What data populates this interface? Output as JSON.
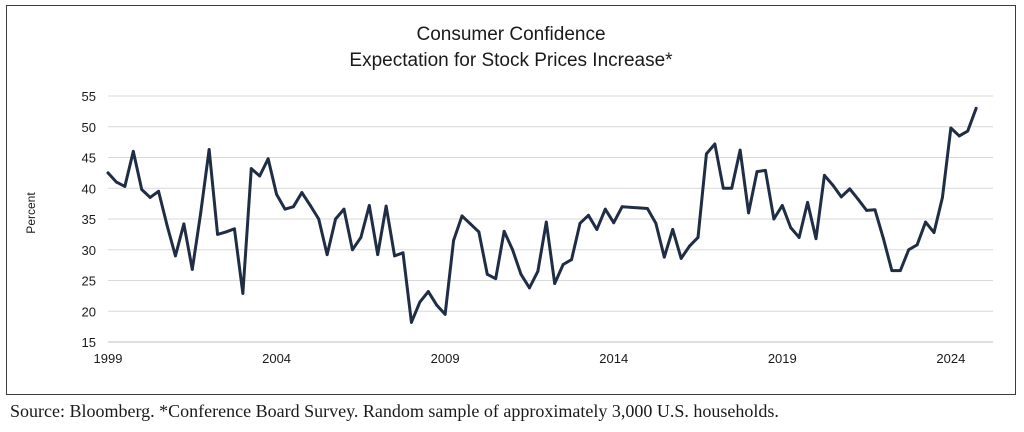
{
  "chart_data": {
    "type": "line",
    "title": "Consumer Confidence",
    "subtitle": "Expectation for Stock Prices Increase*",
    "xlabel": "",
    "ylabel": "Percent",
    "ylim": [
      15,
      55
    ],
    "yticks": [
      15,
      20,
      25,
      30,
      35,
      40,
      45,
      50,
      55
    ],
    "xlim": [
      1999,
      2025.25
    ],
    "xticks": [
      1999,
      2004,
      2009,
      2014,
      2019,
      2024
    ],
    "grid": true,
    "color": "#1f2d45",
    "series": [
      {
        "x": [
          1999.0,
          1999.25,
          1999.5,
          1999.75,
          2000.0,
          2000.25,
          2000.5,
          2000.75,
          2001.0,
          2001.25,
          2001.5,
          2001.75,
          2002.0,
          2002.25,
          2002.5,
          2002.75,
          2003.0,
          2003.25,
          2003.5,
          2003.75,
          2004.0,
          2004.25,
          2004.5,
          2004.75,
          2005.0,
          2005.25,
          2005.5,
          2005.75,
          2006.0,
          2006.25,
          2006.5,
          2006.75,
          2007.0,
          2007.25,
          2007.5,
          2007.75,
          2008.0,
          2008.25,
          2008.5,
          2008.75,
          2009.0,
          2009.25,
          2009.5,
          2009.75,
          2010.0,
          2010.25,
          2010.5,
          2010.75,
          2011.0,
          2011.25,
          2011.5,
          2011.75,
          2012.0,
          2012.25,
          2012.5,
          2012.75,
          2013.0,
          2013.25,
          2013.5,
          2013.75,
          2014.0,
          2014.25,
          2014.5,
          2014.75,
          2015.0,
          2015.25,
          2015.5,
          2015.75,
          2016.0,
          2016.25,
          2016.5,
          2016.75,
          2017.0,
          2017.25,
          2017.5,
          2017.75,
          2018.0,
          2018.25,
          2018.5,
          2018.75,
          2019.0,
          2019.25,
          2019.5,
          2019.75,
          2020.0,
          2020.25,
          2020.5,
          2020.75,
          2021.0,
          2021.25,
          2021.5,
          2021.75,
          2022.0,
          2022.25,
          2022.5,
          2022.75,
          2023.0,
          2023.25,
          2023.5,
          2023.75,
          2024.0,
          2024.25,
          2024.5,
          2024.75
        ],
        "values": [
          42.5,
          41.0,
          40.3,
          46.0,
          39.8,
          38.5,
          39.5,
          34.0,
          29.0,
          34.2,
          26.8,
          36.0,
          46.3,
          32.5,
          32.9,
          33.4,
          22.9,
          43.2,
          42.0,
          44.8,
          39.0,
          36.6,
          37.0,
          39.3,
          37.2,
          35.0,
          29.2,
          35.0,
          36.6,
          30.0,
          32.0,
          37.2,
          29.2,
          37.1,
          29.0,
          29.5,
          18.2,
          21.5,
          23.2,
          21.0,
          19.5,
          31.5,
          35.5,
          34.2,
          32.9,
          26.0,
          25.3,
          33.0,
          30.0,
          26.0,
          23.8,
          26.5,
          34.5,
          24.5,
          27.6,
          28.4,
          34.3,
          35.6,
          33.3,
          36.6,
          34.4,
          37.0,
          36.9,
          36.8,
          36.7,
          34.3,
          28.8,
          33.3,
          28.6,
          30.6,
          32.0,
          45.6,
          47.2,
          40.0,
          40.0,
          46.2,
          36.0,
          42.7,
          42.9,
          35.0,
          37.2,
          33.6,
          32.0,
          37.7,
          31.8,
          42.1,
          40.5,
          38.6,
          39.9,
          38.2,
          36.4,
          36.5,
          31.8,
          26.6,
          26.6,
          30.0,
          30.8,
          34.5,
          32.8,
          38.5,
          49.8,
          48.5,
          49.3,
          53.0
        ]
      }
    ]
  },
  "footer": {
    "source": "Source: Bloomberg. *Conference Board Survey. Random sample of approximately 3,000 U.S. households."
  }
}
